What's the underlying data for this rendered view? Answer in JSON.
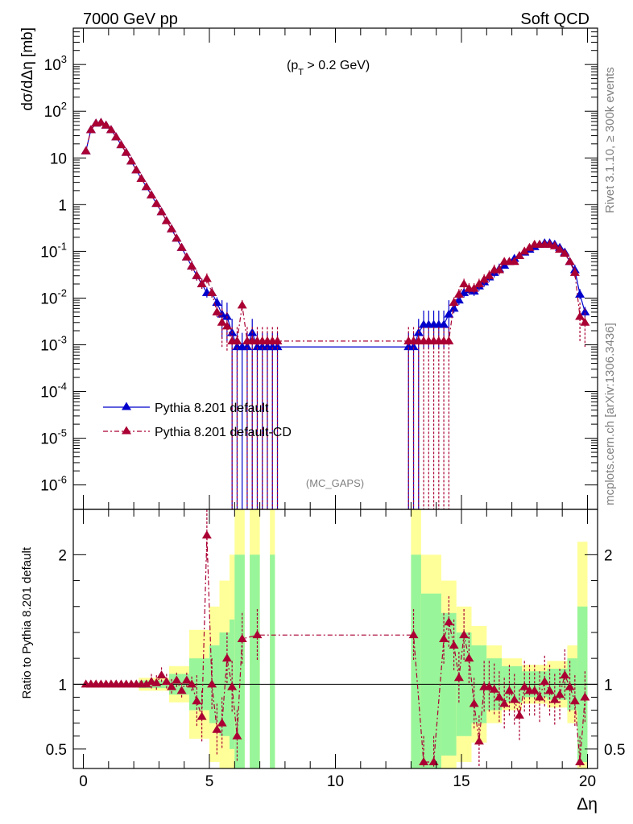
{
  "header": {
    "left": "7000 GeV pp",
    "right": "Soft QCD",
    "cut": "(p",
    "cut_sub": "T",
    "cut_rest": " > 0.2 GeV)",
    "analysis": "(MC_GAPS)",
    "side_rivet": "Rivet 3.1.10, ≥ 300k events",
    "side_mcplots": "mcplots.cern.ch [arXiv:1306.3436]"
  },
  "colors": {
    "series1": "#0000cc",
    "series2": "#aa0033",
    "band_green": "#99f599",
    "band_yellow": "#ffff99"
  },
  "chart_data": [
    {
      "type": "line",
      "ylabel": "dσ/dΔη [mb]",
      "yscale": "log",
      "ylim": [
        3e-07,
        6000
      ],
      "xlim": [
        -0.4,
        20.4
      ],
      "yticks": [
        "10^{-6}",
        "10^{-5}",
        "10^{-4}",
        "10^{-3}",
        "10^{-2}",
        "10^{-1}",
        "1",
        "10",
        "10^{2}",
        "10^{3}"
      ],
      "xticks": [
        "0",
        "5",
        "10",
        "15",
        "20"
      ],
      "legend": [
        {
          "name": "Pythia 8.201 default",
          "style": "solid"
        },
        {
          "name": "Pythia 8.201 default-CD",
          "style": "dash-dot"
        }
      ],
      "series": [
        {
          "name": "Pythia 8.201 default",
          "x": [
            0.1,
            0.3,
            0.5,
            0.7,
            0.9,
            1.1,
            1.3,
            1.5,
            1.7,
            1.9,
            2.1,
            2.3,
            2.5,
            2.7,
            2.9,
            3.1,
            3.3,
            3.5,
            3.7,
            3.9,
            4.1,
            4.3,
            4.5,
            4.7,
            4.9,
            5.1,
            5.3,
            5.5,
            5.7,
            5.9,
            6.1,
            6.3,
            6.5,
            6.7,
            6.9,
            7.1,
            7.3,
            7.5,
            7.7,
            12.9,
            13.1,
            13.3,
            13.5,
            13.7,
            13.9,
            14.1,
            14.3,
            14.5,
            14.7,
            14.9,
            15.1,
            15.3,
            15.5,
            15.7,
            15.9,
            16.1,
            16.3,
            16.5,
            16.7,
            16.9,
            17.1,
            17.3,
            17.5,
            17.7,
            17.9,
            18.1,
            18.3,
            18.5,
            18.7,
            18.9,
            19.1,
            19.3,
            19.5,
            19.7,
            19.9
          ],
          "y": [
            14,
            40,
            55,
            57,
            50,
            40,
            28,
            19,
            13,
            8.5,
            5.5,
            3.6,
            2.4,
            1.6,
            1.05,
            0.7,
            0.45,
            0.3,
            0.19,
            0.12,
            0.075,
            0.048,
            0.03,
            0.02,
            0.013,
            0.013,
            0.008,
            0.0045,
            0.004,
            0.0018,
            0.0009,
            0.0009,
            0.0009,
            0.0018,
            0.0009,
            0.0009,
            0.0009,
            0.0009,
            0.0009,
            0.0009,
            0.0009,
            0.0018,
            0.0027,
            0.0027,
            0.0027,
            0.0027,
            0.0027,
            0.0045,
            0.006,
            0.009,
            0.013,
            0.015,
            0.014,
            0.018,
            0.022,
            0.028,
            0.035,
            0.042,
            0.05,
            0.06,
            0.07,
            0.08,
            0.095,
            0.11,
            0.125,
            0.14,
            0.15,
            0.15,
            0.14,
            0.12,
            0.095,
            0.06,
            0.04,
            0.012,
            0.005
          ]
        },
        {
          "name": "Pythia 8.201 default-CD",
          "x": [
            0.1,
            0.3,
            0.5,
            0.7,
            0.9,
            1.1,
            1.3,
            1.5,
            1.7,
            1.9,
            2.1,
            2.3,
            2.5,
            2.7,
            2.9,
            3.1,
            3.3,
            3.5,
            3.7,
            3.9,
            4.1,
            4.3,
            4.5,
            4.7,
            4.9,
            5.1,
            5.3,
            5.5,
            5.7,
            5.9,
            6.1,
            6.3,
            6.5,
            6.7,
            6.9,
            7.1,
            7.3,
            7.5,
            7.7,
            12.9,
            13.1,
            13.3,
            13.5,
            13.7,
            13.9,
            14.1,
            14.3,
            14.5,
            14.7,
            14.9,
            15.1,
            15.3,
            15.5,
            15.7,
            15.9,
            16.1,
            16.3,
            16.5,
            16.7,
            16.9,
            17.1,
            17.3,
            17.5,
            17.7,
            17.9,
            18.1,
            18.3,
            18.5,
            18.7,
            18.9,
            19.1,
            19.3,
            19.5,
            19.7,
            19.9
          ],
          "y": [
            14,
            40,
            55,
            57,
            50,
            40,
            28,
            19,
            13,
            8.5,
            5.5,
            3.6,
            2.4,
            1.6,
            1.05,
            0.7,
            0.45,
            0.3,
            0.19,
            0.12,
            0.075,
            0.048,
            0.03,
            0.02,
            0.026,
            0.013,
            0.005,
            0.003,
            0.0025,
            0.0012,
            0.0012,
            0.007,
            0.0012,
            0.0012,
            0.0012,
            0.0012,
            0.0012,
            0.0012,
            0.0012,
            0.0012,
            0.0012,
            0.0012,
            0.0012,
            0.0012,
            0.0012,
            0.0012,
            0.0012,
            0.0012,
            0.008,
            0.012,
            0.02,
            0.016,
            0.016,
            0.02,
            0.025,
            0.03,
            0.04,
            0.04,
            0.06,
            0.06,
            0.06,
            0.08,
            0.1,
            0.12,
            0.14,
            0.14,
            0.14,
            0.14,
            0.13,
            0.11,
            0.09,
            0.06,
            0.035,
            0.004,
            0.003
          ]
        }
      ]
    },
    {
      "type": "line",
      "ylabel": "Ratio to Pythia 8.201 default",
      "xlabel": "Δη",
      "ylim": [
        0.35,
        2.35
      ],
      "yticks": [
        "0.5",
        "1",
        "2"
      ],
      "xticks": [
        "0",
        "5",
        "10",
        "15",
        "20"
      ],
      "series": [
        {
          "name": "Pythia 8.201 default-CD",
          "x": [
            0.1,
            0.3,
            0.5,
            0.7,
            0.9,
            1.1,
            1.3,
            1.5,
            1.7,
            1.9,
            2.1,
            2.3,
            2.5,
            2.7,
            2.9,
            3.1,
            3.3,
            3.5,
            3.7,
            3.9,
            4.1,
            4.3,
            4.5,
            4.7,
            4.9,
            5.1,
            5.3,
            5.5,
            5.7,
            5.9,
            6.1,
            6.3,
            6.9,
            13.1,
            13.5,
            13.9,
            14.3,
            14.5,
            14.7,
            14.9,
            15.1,
            15.3,
            15.5,
            15.7,
            15.9,
            16.1,
            16.3,
            16.5,
            16.7,
            16.9,
            17.1,
            17.3,
            17.5,
            17.7,
            17.9,
            18.1,
            18.3,
            18.5,
            18.7,
            18.9,
            19.1,
            19.3,
            19.5,
            19.7,
            19.9
          ],
          "y": [
            1,
            1,
            1,
            1,
            1,
            1,
            1,
            1,
            1,
            1,
            1,
            1,
            1,
            1.02,
            1.01,
            1.07,
            1.02,
            0.98,
            1.03,
            0.95,
            1.03,
            1.0,
            0.87,
            0.75,
            2.15,
            1.0,
            0.65,
            0.7,
            1.2,
            0.98,
            0.6,
            1.35,
            1.38,
            1.38,
            0.4,
            0.4,
            1.35,
            1.48,
            1.3,
            1.05,
            1.38,
            1.2,
            0.85,
            0.56,
            0.98,
            0.98,
            0.96,
            0.9,
            0.85,
            0.95,
            0.88,
            0.76,
            0.98,
            0.95,
            0.95,
            0.9,
            1.02,
            0.95,
            0.88,
            0.92,
            1.07,
            0.98,
            0.87,
            0.4,
            0.9
          ]
        }
      ]
    }
  ]
}
